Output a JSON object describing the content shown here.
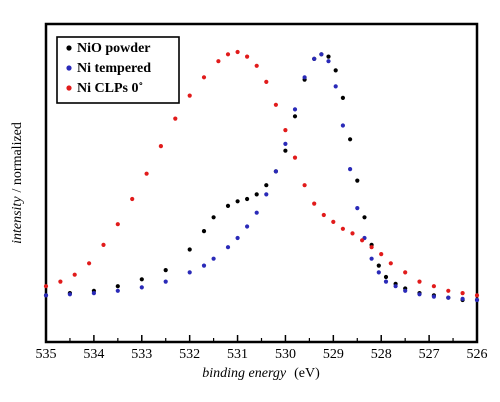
{
  "chart_data": {
    "type": "scatter",
    "xlabel_italic": "binding energy",
    "xlabel_unit": "(eV)",
    "ylabel_italic": "intensity",
    "ylabel_rest": "/ normalized",
    "xlim": [
      535,
      526
    ],
    "ylim": [
      0,
      1.1
    ],
    "xticks": [
      "535",
      "534",
      "533",
      "532",
      "531",
      "530",
      "529",
      "528",
      "527",
      "526"
    ],
    "legend_position": "top-left",
    "series": [
      {
        "name": "NiO powder",
        "color": "#000000",
        "x": [
          535.0,
          534.5,
          534.0,
          533.5,
          533.0,
          532.5,
          532.0,
          531.7,
          531.5,
          531.2,
          531.0,
          530.8,
          530.6,
          530.4,
          530.2,
          530.0,
          529.8,
          529.6,
          529.4,
          529.25,
          529.1,
          528.95,
          528.8,
          528.65,
          528.5,
          528.35,
          528.2,
          528.05,
          527.9,
          527.7,
          527.5,
          527.2,
          526.9,
          526.6,
          526.3,
          526.0
        ],
        "y": [
          0.02,
          0.03,
          0.04,
          0.06,
          0.09,
          0.13,
          0.22,
          0.3,
          0.36,
          0.41,
          0.43,
          0.44,
          0.46,
          0.5,
          0.56,
          0.65,
          0.8,
          0.96,
          1.05,
          1.07,
          1.06,
          1.0,
          0.88,
          0.7,
          0.52,
          0.36,
          0.24,
          0.15,
          0.1,
          0.07,
          0.05,
          0.03,
          0.02,
          0.01,
          0.0,
          0.0
        ]
      },
      {
        "name": "Ni tempered",
        "color": "#2a2ab8",
        "x": [
          535.0,
          534.5,
          534.0,
          533.5,
          533.0,
          532.5,
          532.0,
          531.7,
          531.5,
          531.2,
          531.0,
          530.8,
          530.6,
          530.4,
          530.2,
          530.0,
          529.8,
          529.6,
          529.4,
          529.25,
          529.1,
          528.95,
          528.8,
          528.65,
          528.5,
          528.35,
          528.2,
          528.05,
          527.9,
          527.7,
          527.5,
          527.2,
          526.9,
          526.6,
          526.3,
          526.0
        ],
        "y": [
          0.02,
          0.025,
          0.03,
          0.04,
          0.055,
          0.08,
          0.12,
          0.15,
          0.18,
          0.23,
          0.27,
          0.32,
          0.38,
          0.46,
          0.56,
          0.68,
          0.83,
          0.97,
          1.05,
          1.07,
          1.04,
          0.93,
          0.76,
          0.57,
          0.4,
          0.27,
          0.18,
          0.12,
          0.08,
          0.06,
          0.04,
          0.025,
          0.015,
          0.01,
          0.005,
          0.0
        ]
      },
      {
        "name": "Ni CLPs 0˚",
        "color": "#e11b1b",
        "x": [
          535.0,
          534.7,
          534.4,
          534.1,
          533.8,
          533.5,
          533.2,
          532.9,
          532.6,
          532.3,
          532.0,
          531.7,
          531.4,
          531.2,
          531.0,
          530.8,
          530.6,
          530.4,
          530.2,
          530.0,
          529.8,
          529.6,
          529.4,
          529.2,
          529.0,
          528.8,
          528.6,
          528.4,
          528.2,
          528.0,
          527.8,
          527.5,
          527.2,
          526.9,
          526.6,
          526.3,
          526.0
        ],
        "y": [
          0.06,
          0.08,
          0.11,
          0.16,
          0.24,
          0.33,
          0.44,
          0.55,
          0.67,
          0.79,
          0.89,
          0.97,
          1.04,
          1.07,
          1.08,
          1.06,
          1.02,
          0.95,
          0.85,
          0.74,
          0.62,
          0.5,
          0.42,
          0.37,
          0.34,
          0.31,
          0.29,
          0.26,
          0.23,
          0.2,
          0.16,
          0.12,
          0.08,
          0.06,
          0.04,
          0.03,
          0.02
        ]
      }
    ]
  }
}
